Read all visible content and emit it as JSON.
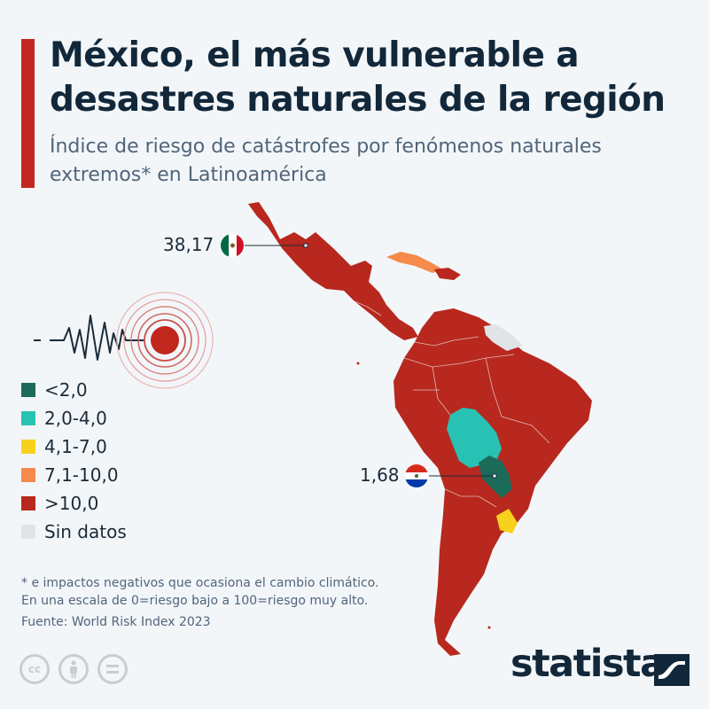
{
  "title": "México, el más vulnerable a desastres naturales de la región",
  "subtitle": "Índice de riesgo de catástrofes por fenómenos naturales extremos* en Latinoamérica",
  "callouts": {
    "mexico_value": "38,17",
    "paraguay_value": "1,68"
  },
  "legend": [
    {
      "label": "<2,0",
      "color": "#1b6a5a"
    },
    {
      "label": "2,0-4,0",
      "color": "#27c2b3"
    },
    {
      "label": "4,1-7,0",
      "color": "#f7d21d"
    },
    {
      "label": "7,1-10,0",
      "color": "#f58a4a"
    },
    {
      "label": ">10,0",
      "color": "#b8281e"
    },
    {
      "label": "Sin datos",
      "color": "#e1e4e7"
    }
  ],
  "footnote": {
    "line1": "* e impactos negativos que ocasiona el cambio climático.",
    "line2": "En una escala de 0=riesgo bajo a 100=riesgo muy alto.",
    "source": "Fuente: World Risk Index 2023"
  },
  "brand": {
    "name": "statista"
  },
  "icons": [
    "seismograph-icon",
    "epicenter-icon",
    "mexico-flag-icon",
    "paraguay-flag-icon",
    "cc-icon",
    "attribution-icon",
    "no-derivatives-icon",
    "statista-logo-icon"
  ],
  "regions": {
    "mexico": {
      "index": 38.17,
      "category": ">10,0"
    },
    "paraguay": {
      "index": 1.68,
      "category": "<2,0"
    },
    "bolivia": {
      "category": "2,0-4,0"
    },
    "uruguay": {
      "category": "4,1-7,0"
    },
    "cuba": {
      "category": "7,1-10,0"
    },
    "guianas": {
      "category": "Sin datos"
    }
  }
}
